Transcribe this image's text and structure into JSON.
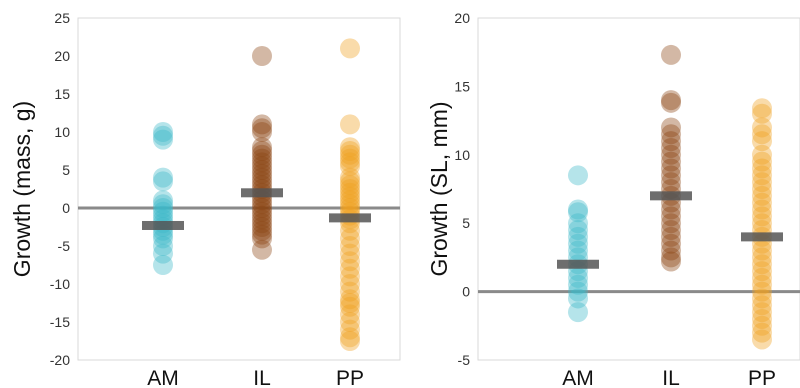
{
  "chart_data": [
    {
      "type": "scatter",
      "title": "",
      "ylabel": "Growth (mass, g)",
      "xlabel": "",
      "ylim": [
        -20,
        25
      ],
      "yticks": [
        -20,
        -15,
        -10,
        -5,
        0,
        5,
        10,
        15,
        20,
        25
      ],
      "categories": [
        "AM",
        "IL",
        "PP"
      ],
      "grid": false,
      "reference_line": 0,
      "series": [
        {
          "category": "AM",
          "color": "#3db8c9",
          "mean": -2.3,
          "values": [
            10,
            9.5,
            9,
            4,
            3.5,
            1,
            0.5,
            0,
            -0.5,
            -1,
            -1.5,
            -2,
            -2.5,
            -3,
            -3.5,
            -4,
            -5,
            -6,
            -7.5
          ]
        },
        {
          "category": "IL",
          "color": "#8b4513",
          "mean": 2,
          "values": [
            20,
            11,
            10.5,
            10,
            8,
            7.5,
            7,
            6.5,
            6,
            5.5,
            5,
            4.5,
            4,
            3.5,
            3,
            2.5,
            2,
            1.5,
            1,
            0.5,
            0,
            -0.5,
            -1,
            -1.5,
            -2,
            -2.5,
            -3,
            -3.5,
            -4,
            -5.5
          ]
        },
        {
          "category": "PP",
          "color": "#f0a020",
          "mean": -1.3,
          "values": [
            21,
            11,
            8,
            7.5,
            7,
            6.5,
            6,
            5.5,
            4,
            3.5,
            3,
            2.5,
            2,
            1.5,
            1,
            0.5,
            0,
            -0.5,
            -1,
            -1.5,
            -2,
            -3,
            -4,
            -5,
            -6,
            -7,
            -8,
            -9,
            -10,
            -11,
            -12,
            -12.5,
            -13,
            -14,
            -15,
            -16,
            -17,
            -17.5
          ]
        }
      ]
    },
    {
      "type": "scatter",
      "title": "",
      "ylabel": "Growth (SL, mm)",
      "xlabel": "",
      "ylim": [
        -5,
        20
      ],
      "yticks": [
        -5,
        0,
        5,
        10,
        15,
        20
      ],
      "categories": [
        "AM",
        "IL",
        "PP"
      ],
      "grid": false,
      "reference_line": 0,
      "series": [
        {
          "category": "AM",
          "color": "#3db8c9",
          "mean": 2,
          "values": [
            8.5,
            6,
            5.8,
            5,
            4.5,
            4,
            3.5,
            3,
            2.5,
            2,
            1.5,
            1,
            0.5,
            0,
            -0.5,
            -1.5
          ]
        },
        {
          "category": "IL",
          "color": "#8b4513",
          "mean": 7,
          "values": [
            17.3,
            14,
            13.8,
            12,
            11.5,
            11,
            10.5,
            10,
            9.5,
            9,
            8.5,
            8,
            7.5,
            7,
            6.5,
            6,
            5.5,
            5,
            4.5,
            4,
            3.5,
            3,
            2.5,
            2.2
          ]
        },
        {
          "category": "PP",
          "color": "#f0a020",
          "mean": 4,
          "values": [
            13.4,
            13,
            12,
            11.5,
            11,
            10,
            9.5,
            9,
            8.5,
            8,
            7.5,
            7,
            6.5,
            6,
            5.5,
            5,
            4.5,
            4,
            3.5,
            3,
            2.5,
            2,
            1.5,
            1,
            0.5,
            0,
            -0.5,
            -1,
            -1.5,
            -2,
            -2.5,
            -3,
            -3.5
          ]
        }
      ]
    }
  ]
}
